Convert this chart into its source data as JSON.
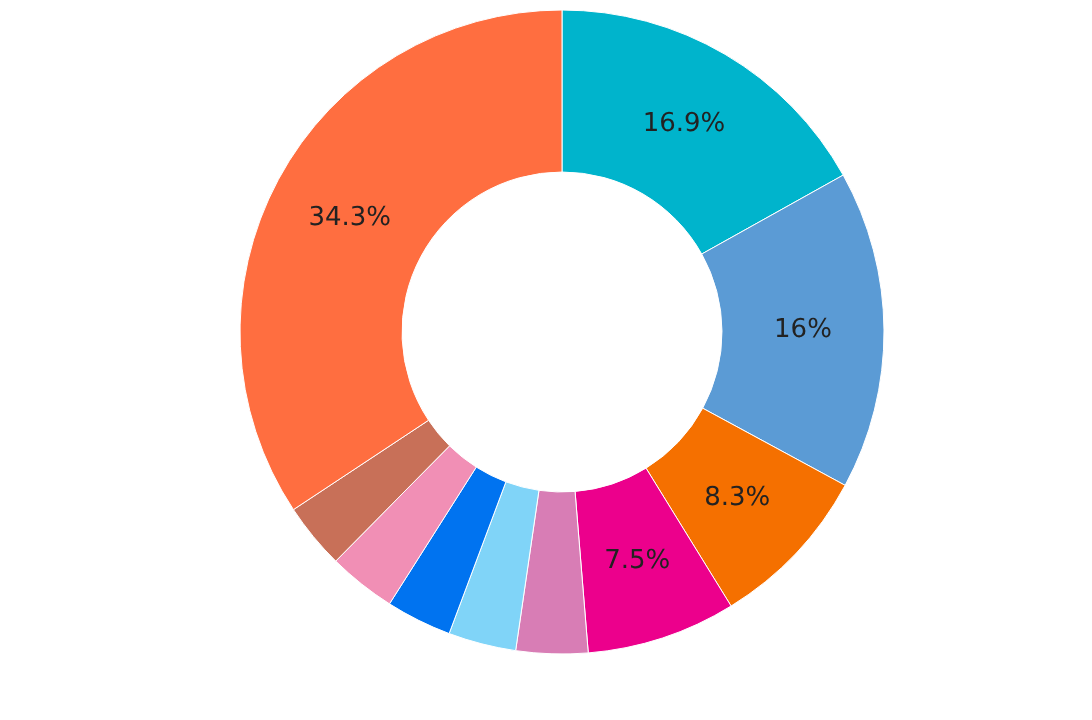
{
  "chart_data": {
    "type": "donut",
    "categories": [
      null,
      null,
      null,
      null,
      null,
      null,
      null,
      null,
      null,
      null
    ],
    "values": [
      16.9,
      16,
      8.3,
      7.5,
      3.6,
      3.4,
      3.3,
      3.4,
      3.3,
      34.3
    ],
    "colors": [
      "#00b4cc",
      "#5b9bd5",
      "#f57000",
      "#ec008c",
      "#d87db5",
      "#80d4f8",
      "#0073f0",
      "#f18fb5",
      "#c87058",
      "#ff6e40"
    ],
    "value_labels": [
      "16.9%",
      "16%",
      "8.3%",
      "7.5%",
      null,
      null,
      null,
      null,
      null,
      "34.3%"
    ],
    "legend": false
  }
}
